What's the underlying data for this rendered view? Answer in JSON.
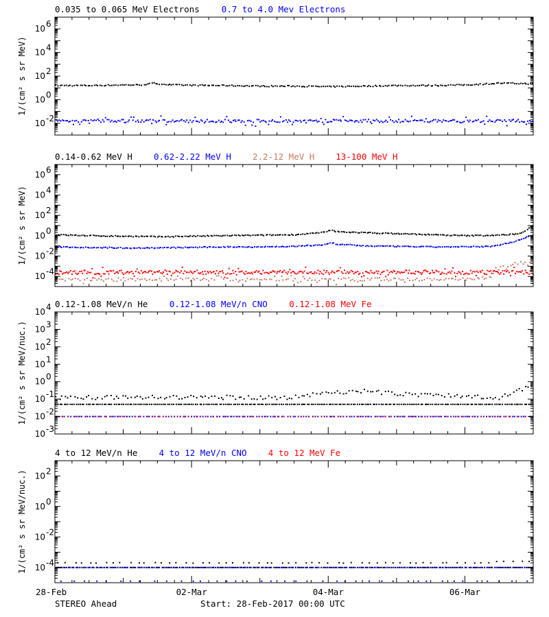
{
  "footer": {
    "spacecraft": "STEREO Ahead",
    "start": "Start: 28-Feb-2017 00:00 UTC"
  },
  "x_ticks": [
    "28-Feb",
    "02-Mar",
    "04-Mar",
    "06-Mar"
  ],
  "x_range_days": [
    0,
    7
  ],
  "chart_data": [
    {
      "type": "scatter",
      "ylabel": "1/(cm² s sr MeV)",
      "y_log": true,
      "ylim_exp": [
        -3,
        7
      ],
      "tick_exps": [
        -2,
        0,
        2,
        4,
        6
      ],
      "legend": [
        {
          "name": "0.035 to 0.065 MeV Electrons",
          "color": "#000000"
        },
        {
          "name": "0.7 to 4.0 Mev Electrons",
          "color": "#0000ff"
        }
      ],
      "series": [
        {
          "name": "0.035 to 0.065 MeV Electrons",
          "color": "#000000",
          "x": [
            0,
            0.5,
            1,
            1.25,
            1.45,
            1.5,
            1.7,
            2,
            2.5,
            3,
            3.5,
            4,
            4.5,
            5,
            5.5,
            6,
            6.5,
            7
          ],
          "log_y": [
            1.2,
            1.2,
            1.25,
            1.25,
            1.4,
            1.35,
            1.25,
            1.22,
            1.2,
            1.15,
            1.15,
            1.1,
            1.15,
            1.2,
            1.2,
            1.25,
            1.4,
            1.35
          ],
          "jitter": 0.05,
          "density": 240,
          "scatter_frac": 0
        },
        {
          "name": "0.7 to 4.0 Mev Electrons",
          "color": "#0000ff",
          "x": [
            0,
            7
          ],
          "log_y": [
            -1.8,
            -1.8
          ],
          "jitter": 0.12,
          "density": 300,
          "scatter_frac": 0.15
        }
      ]
    },
    {
      "type": "scatter",
      "ylabel": "1/(cm² s sr MeV)",
      "y_log": true,
      "ylim_exp": [
        -5,
        7
      ],
      "tick_exps": [
        -4,
        -2,
        0,
        2,
        4,
        6
      ],
      "legend": [
        {
          "name": "0.14-0.62 MeV H",
          "color": "#000000"
        },
        {
          "name": "0.62-2.22 MeV H",
          "color": "#0000ff"
        },
        {
          "name": "2.2-12 MeV H",
          "color": "#c87860"
        },
        {
          "name": "13-100 MeV H",
          "color": "#ff0000"
        }
      ],
      "series": [
        {
          "name": "0.14-0.62 MeV H",
          "color": "#000000",
          "x": [
            0,
            0.5,
            1,
            1.5,
            2,
            2.5,
            3,
            3.5,
            3.9,
            4.05,
            4.1,
            4.3,
            4.5,
            5,
            5.5,
            6,
            6.5,
            6.8,
            7
          ],
          "log_y": [
            0.1,
            0.0,
            -0.05,
            -0.1,
            -0.05,
            0.0,
            0.05,
            0.1,
            0.3,
            0.55,
            0.4,
            0.35,
            0.3,
            0.2,
            0.1,
            0.0,
            0.05,
            0.2,
            1.0
          ],
          "jitter": 0.05,
          "density": 260,
          "scatter_frac": 0
        },
        {
          "name": "0.62-2.22 MeV H",
          "color": "#0000ff",
          "x": [
            0,
            0.5,
            1,
            1.5,
            2,
            2.5,
            3,
            3.5,
            3.9,
            4.05,
            4.1,
            4.3,
            4.5,
            5,
            5.5,
            6,
            6.4,
            6.7,
            7
          ],
          "log_y": [
            -1.1,
            -1.15,
            -1.2,
            -1.2,
            -1.15,
            -1.1,
            -1.1,
            -1.05,
            -0.9,
            -0.7,
            -0.85,
            -0.9,
            -1.0,
            -1.05,
            -1.1,
            -1.1,
            -1.05,
            -0.6,
            0.1
          ],
          "jitter": 0.05,
          "density": 260,
          "scatter_frac": 0
        },
        {
          "name": "2.2-12 MeV H",
          "color": "#c87860",
          "x": [
            0,
            5,
            6.1,
            6.3,
            6.5,
            6.7,
            7
          ],
          "log_y": [
            -4.3,
            -4.3,
            -4.3,
            -4.1,
            -3.3,
            -2.8,
            -2.7
          ],
          "jitter": 0.15,
          "density": 200,
          "scatter_frac": 0.2
        },
        {
          "name": "13-100 MeV H",
          "color": "#ff0000",
          "x": [
            0,
            7
          ],
          "log_y": [
            -3.6,
            -3.6
          ],
          "jitter": 0.2,
          "density": 360,
          "scatter_frac": 0.15
        }
      ]
    },
    {
      "type": "scatter",
      "ylabel": "1/(cm² s sr MeV/nuc.)",
      "y_log": true,
      "ylim_exp": [
        -3,
        4
      ],
      "tick_exps": [
        -3,
        -2,
        -1,
        0,
        1,
        2,
        3,
        4
      ],
      "legend": [
        {
          "name": "0.12-1.08 MeV/n He",
          "color": "#000000"
        },
        {
          "name": "0.12-1.08 MeV/n CNO",
          "color": "#0000ff"
        },
        {
          "name": "0.12-1.08 MeV Fe",
          "color": "#ff0000"
        }
      ],
      "series": [
        {
          "name": "0.12-1.08 MeV/n He",
          "color": "#000000",
          "x": [
            0,
            7
          ],
          "log_y": [
            -1.3,
            -1.3
          ],
          "jitter": 0,
          "density": 240,
          "scatter_frac": 0
        },
        {
          "name": "0.12-1.08 MeV/n He",
          "color": "#000000",
          "x": [
            0,
            3.5,
            4,
            4.5,
            5,
            6.5,
            7
          ],
          "log_y": [
            -0.9,
            -0.9,
            -0.6,
            -0.55,
            -0.7,
            -0.9,
            -0.2
          ],
          "jitter": 0.12,
          "density": 160,
          "scatter_frac": 0
        },
        {
          "name": "0.12-1.08 MeV/n CNO",
          "color": "#0000ff",
          "x": [
            0,
            7
          ],
          "log_y": [
            -2.0,
            -2.0
          ],
          "jitter": 0,
          "density": 170,
          "scatter_frac": 0
        },
        {
          "name": "0.12-1.08 MeV Fe",
          "color": "#ff0000",
          "x": [
            0,
            7
          ],
          "log_y": [
            -2.0,
            -2.0
          ],
          "jitter": 0,
          "density": 80,
          "scatter_frac": 0
        }
      ]
    },
    {
      "type": "scatter",
      "ylabel": "1/(cm² s sr MeV/nuc.)",
      "y_log": true,
      "ylim_exp": [
        -5,
        3
      ],
      "tick_exps": [
        -4,
        -2,
        0,
        2
      ],
      "legend": [
        {
          "name": "4 to 12 MeV/n He",
          "color": "#000000"
        },
        {
          "name": "4 to 12 MeV/n CNO",
          "color": "#0000ff"
        },
        {
          "name": "4 to 12 MeV Fe",
          "color": "#ff0000"
        }
      ],
      "series": [
        {
          "name": "4 to 12 MeV/n He",
          "color": "#000000",
          "x": [
            0,
            7
          ],
          "log_y": [
            -4.0,
            -4.0
          ],
          "jitter": 0,
          "density": 240,
          "scatter_frac": 0
        },
        {
          "name": "4 to 12 MeV/n He",
          "color": "#000000",
          "x": [
            0,
            6.3,
            6.5,
            7
          ],
          "log_y": [
            -3.7,
            -3.7,
            -3.6,
            -3.6
          ],
          "jitter": 0.02,
          "density": 60,
          "scatter_frac": 0
        },
        {
          "name": "4 to 12 MeV/n CNO",
          "color": "#0000ff",
          "x": [
            0,
            7
          ],
          "log_y": [
            -4.0,
            -4.0
          ],
          "jitter": 0,
          "density": 140,
          "scatter_frac": 0
        },
        {
          "name": "4 to 12 MeV/n CNO",
          "color": "#0000ff",
          "x": [
            0,
            7
          ],
          "log_y": [
            -4.9,
            -4.9
          ],
          "jitter": 0,
          "density": 40,
          "scatter_frac": 0
        }
      ]
    }
  ]
}
